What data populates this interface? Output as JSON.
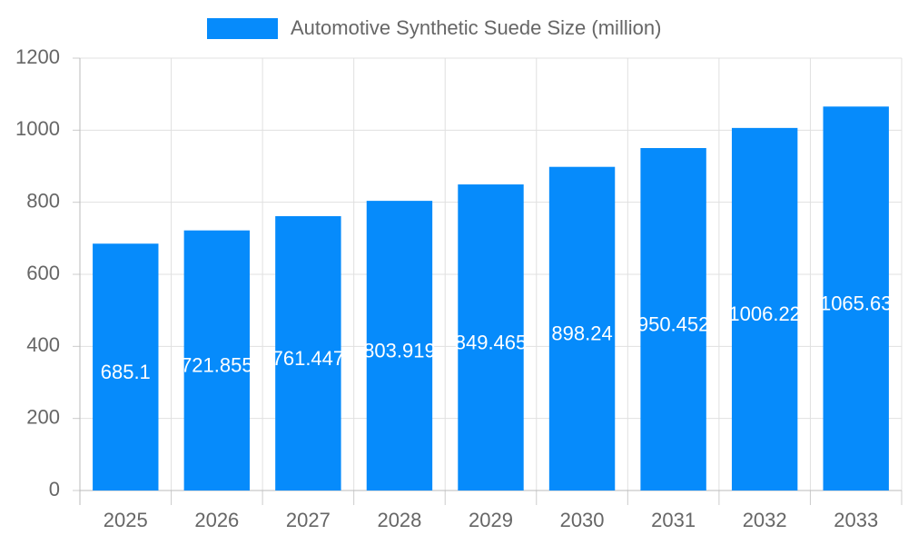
{
  "chart_data": {
    "type": "bar",
    "categories": [
      "2025",
      "2026",
      "2027",
      "2028",
      "2029",
      "2030",
      "2031",
      "2032",
      "2033"
    ],
    "series": [
      {
        "name": "Automotive Synthetic Suede Size (million)",
        "color": "#068bfb",
        "values": [
          685.1,
          721.855,
          761.447,
          803.919,
          849.465,
          898.24,
          950.452,
          1006.22,
          1065.63
        ]
      }
    ],
    "ylim": [
      0,
      1200
    ],
    "yticks": [
      0,
      200,
      400,
      600,
      800,
      1000,
      1200
    ],
    "grid": true,
    "legend": "top"
  }
}
